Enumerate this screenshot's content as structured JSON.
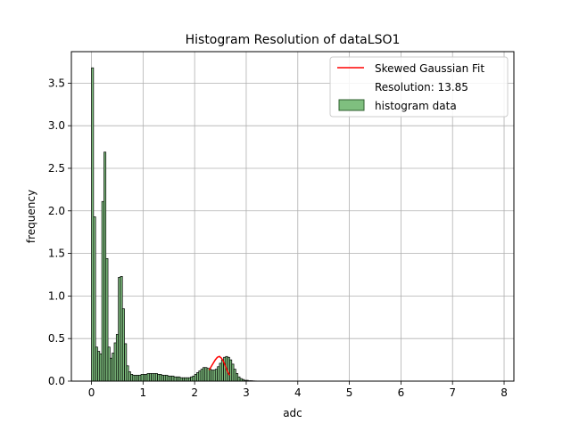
{
  "chart_data": {
    "type": "bar",
    "title": "Histogram Resolution of dataLSO1",
    "xlabel": "adc",
    "ylabel": "frequency",
    "xlim": [
      -0.39,
      8.19
    ],
    "ylim": [
      0,
      3.87
    ],
    "xticks": [
      "0",
      "1",
      "2",
      "3",
      "4",
      "5",
      "6",
      "7",
      "8"
    ],
    "yticks": [
      "0.0",
      "0.5",
      "1.0",
      "1.5",
      "2.0",
      "2.5",
      "3.0",
      "3.5"
    ],
    "grid": true,
    "legend_position": "top-right",
    "bin_width": 0.04,
    "histogram": {
      "name": "histogram data",
      "bin_start": 0.0,
      "values": [
        3.68,
        1.93,
        0.4,
        0.35,
        0.32,
        2.11,
        2.69,
        1.44,
        0.4,
        0.27,
        0.33,
        0.45,
        0.55,
        1.22,
        1.23,
        0.85,
        0.44,
        0.18,
        0.11,
        0.08,
        0.07,
        0.07,
        0.07,
        0.07,
        0.08,
        0.08,
        0.08,
        0.09,
        0.09,
        0.09,
        0.09,
        0.09,
        0.08,
        0.08,
        0.07,
        0.07,
        0.07,
        0.06,
        0.06,
        0.06,
        0.05,
        0.05,
        0.05,
        0.04,
        0.04,
        0.04,
        0.04,
        0.04,
        0.05,
        0.06,
        0.08,
        0.1,
        0.12,
        0.14,
        0.16,
        0.16,
        0.15,
        0.14,
        0.13,
        0.13,
        0.14,
        0.17,
        0.21,
        0.25,
        0.28,
        0.29,
        0.28,
        0.25,
        0.2,
        0.14,
        0.09,
        0.05,
        0.03,
        0.02,
        0.01,
        0.01,
        0.005,
        0.005,
        0.003,
        0.002
      ]
    },
    "series": [
      {
        "name": "Skewed Gaussian Fit",
        "color": "#ff0000",
        "x": [
          2.28,
          2.32,
          2.36,
          2.4,
          2.44,
          2.48,
          2.52,
          2.56,
          2.6,
          2.64,
          2.68
        ],
        "y": [
          0.13,
          0.17,
          0.21,
          0.25,
          0.28,
          0.29,
          0.27,
          0.23,
          0.17,
          0.11,
          0.07
        ]
      }
    ],
    "legend": [
      {
        "label": "Skewed Gaussian Fit",
        "kind": "line",
        "color": "#ff0000"
      },
      {
        "label": "Resolution: 13.85",
        "kind": "none"
      },
      {
        "label": "histogram data",
        "kind": "patch",
        "color": "#7fbf7f"
      }
    ],
    "colors": {
      "bar_fill": "#7fbf7f",
      "bar_edge": "#000000",
      "fit_line": "#ff0000",
      "grid": "#b0b0b0"
    }
  }
}
